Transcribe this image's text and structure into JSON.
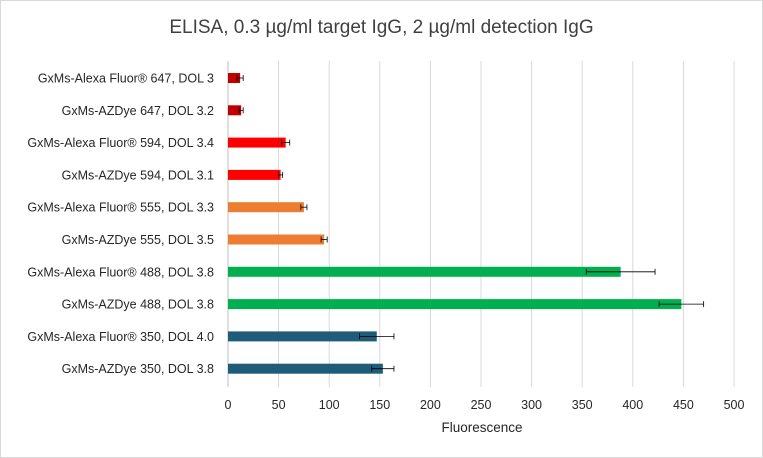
{
  "chart_data": {
    "type": "bar",
    "orientation": "horizontal",
    "title": "ELISA, 0.3 µg/ml target IgG, 2 µg/ml detection IgG",
    "xlabel": "Fluorescence",
    "ylabel": "",
    "xlim": [
      0,
      500
    ],
    "xticks": [
      0,
      50,
      100,
      150,
      200,
      250,
      300,
      350,
      400,
      450,
      500
    ],
    "grid": "vertical",
    "legend": "none",
    "categories": [
      "GxMs-Alexa Fluor® 647, DOL 3",
      "GxMs-AZDye 647, DOL 3.2",
      "GxMs-Alexa Fluor® 594, DOL 3.4",
      "GxMs-AZDye 594, DOL 3.1",
      "GxMs-Alexa Fluor® 555, DOL 3.3",
      "GxMs-AZDye 555, DOL 3.5",
      "GxMs-Alexa Fluor® 488, DOL 3.8",
      "GxMs-AZDye 488, DOL 3.8",
      "GxMs-Alexa Fluor® 350, DOL 4.0",
      "GxMs-AZDye 350, DOL 3.8"
    ],
    "values": [
      12,
      13,
      57,
      52,
      75,
      95,
      388,
      448,
      147,
      153
    ],
    "errors": [
      3,
      2,
      4,
      2,
      3,
      3,
      34,
      22,
      17,
      11
    ],
    "colors": [
      "#c00000",
      "#c00000",
      "#ff0000",
      "#ff0000",
      "#ed7d31",
      "#ed7d31",
      "#00b050",
      "#00b050",
      "#1f5c7a",
      "#1f5c7a"
    ]
  }
}
